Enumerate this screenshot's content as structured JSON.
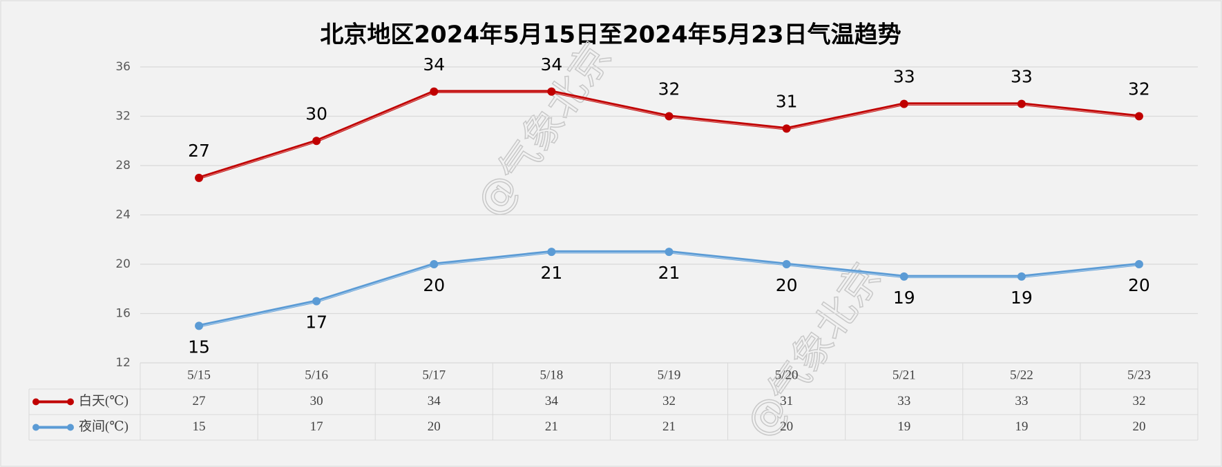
{
  "chart_data": {
    "type": "line",
    "title": "北京地区2024年5月15日至2024年5月23日气温趋势",
    "watermark": "@气象北京",
    "categories": [
      "5/15",
      "5/16",
      "5/17",
      "5/18",
      "5/19",
      "5/20",
      "5/21",
      "5/22",
      "5/23"
    ],
    "series": [
      {
        "name": "白天(℃)",
        "color": "#c00000",
        "values": [
          27,
          30,
          34,
          34,
          32,
          31,
          33,
          33,
          32
        ],
        "label_position": "above"
      },
      {
        "name": "夜间(℃)",
        "color": "#5b9bd5",
        "values": [
          15,
          17,
          20,
          21,
          21,
          20,
          19,
          19,
          20
        ],
        "label_position": "below"
      }
    ],
    "ylim": [
      12,
      36
    ],
    "yticks": [
      12,
      16,
      20,
      24,
      28,
      32,
      36
    ],
    "grid": true,
    "data_table": true
  }
}
